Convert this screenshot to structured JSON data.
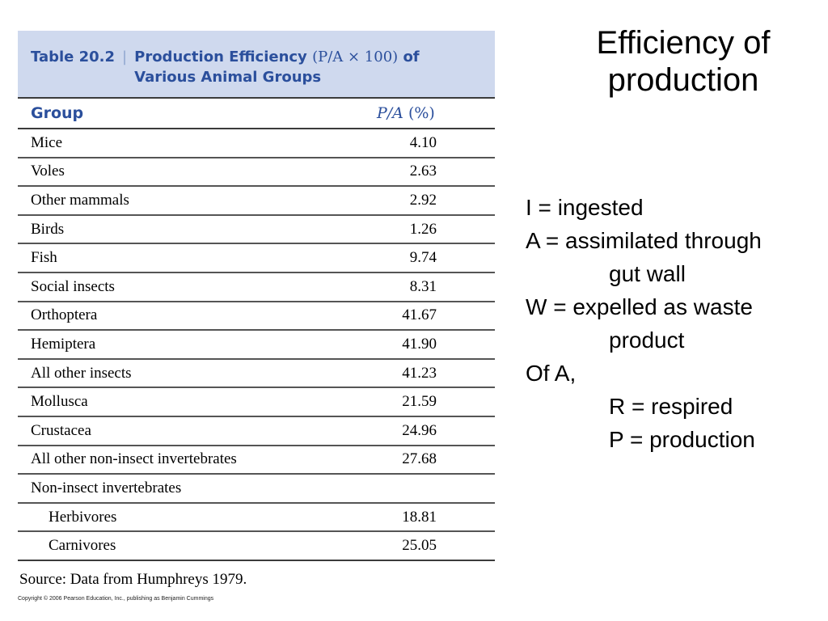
{
  "slide_title_line1": "Efficiency of",
  "slide_title_line2": "production",
  "table": {
    "label": "Table 20.2",
    "title_pre": "Production Efficiency ",
    "title_math": "(P/A × 100)",
    "title_post": " of",
    "title_line2": "Various Animal Groups",
    "col_group": "Group",
    "col_value_var": "P/A",
    "col_value_unit": " (%)",
    "rows": [
      {
        "group": "Mice",
        "value": "4.10"
      },
      {
        "group": "Voles",
        "value": "2.63"
      },
      {
        "group": "Other mammals",
        "value": "2.92"
      },
      {
        "group": "Birds",
        "value": "1.26"
      },
      {
        "group": "Fish",
        "value": "9.74"
      },
      {
        "group": "Social insects",
        "value": "8.31"
      },
      {
        "group": "Orthoptera",
        "value": "41.67"
      },
      {
        "group": "Hemiptera",
        "value": "41.90"
      },
      {
        "group": "All other insects",
        "value": "41.23"
      },
      {
        "group": "Mollusca",
        "value": "21.59"
      },
      {
        "group": "Crustacea",
        "value": "24.96"
      },
      {
        "group": "All other non-insect invertebrates",
        "value": "27.68"
      },
      {
        "group": "Non-insect invertebrates",
        "value": ""
      },
      {
        "group": "Herbivores",
        "value": "18.81",
        "sub": true
      },
      {
        "group": "Carnivores",
        "value": "25.05",
        "sub": true
      }
    ],
    "source": "Source: Data from Humphreys 1979."
  },
  "copyright": "Copyright © 2006 Pearson Education, Inc., publishing as Benjamin Cummings",
  "notes": [
    {
      "text": "I = ingested",
      "indent": false
    },
    {
      "text": "A = assimilated through",
      "indent": false
    },
    {
      "text": "gut wall",
      "indent": true
    },
    {
      "text": "W = expelled as waste",
      "indent": false
    },
    {
      "text": "product",
      "indent": true
    },
    {
      "text": "Of A,",
      "indent": false
    },
    {
      "text": "R = respired",
      "indent": true
    },
    {
      "text": "P = production",
      "indent": true
    }
  ]
}
